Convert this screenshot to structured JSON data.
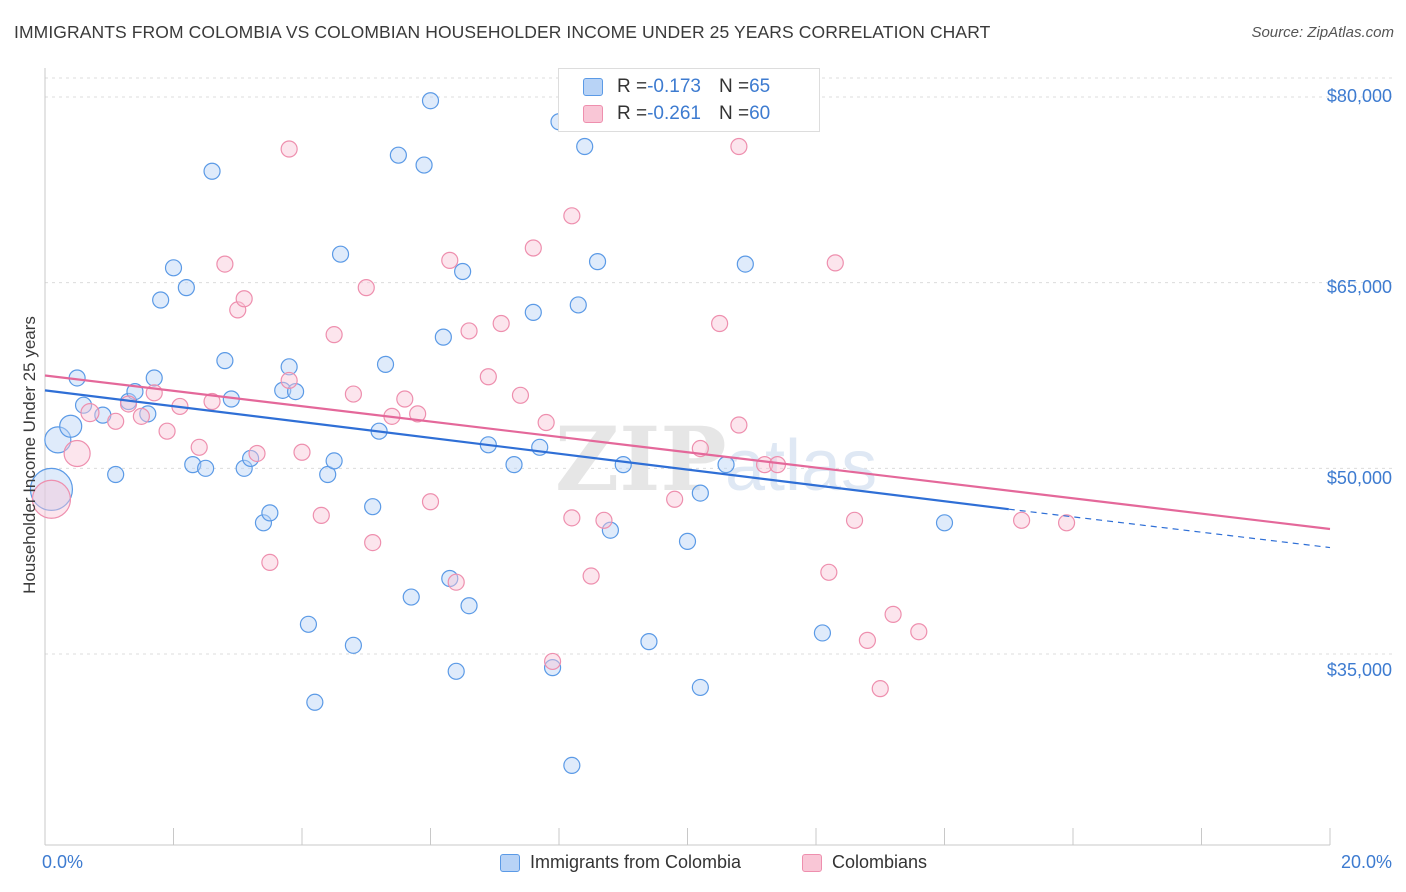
{
  "title": "IMMIGRANTS FROM COLOMBIA VS COLOMBIAN HOUSEHOLDER INCOME UNDER 25 YEARS CORRELATION CHART",
  "source": "Source: ZipAtlas.com",
  "legend_top": {
    "row1": {
      "r_label": "R = ",
      "r_value": "-0.173",
      "n_label": "N = ",
      "n_value": "65"
    },
    "row2": {
      "r_label": "R = ",
      "r_value": "-0.261",
      "n_label": "N = ",
      "n_value": "60"
    }
  },
  "colors": {
    "blue": "#5b9ae6",
    "pink": "#ee8fae",
    "blue_line": "#2f6fd6",
    "pink_line": "#e4689a",
    "accent_text": "#3d7bd0"
  },
  "chart_data": {
    "type": "scatter",
    "title": "IMMIGRANTS FROM COLOMBIA VS COLOMBIAN HOUSEHOLDER INCOME UNDER 25 YEARS CORRELATION CHART",
    "xlabel": "",
    "ylabel": "Householder Income Under 25 years",
    "xlim": [
      0,
      20
    ],
    "ylim": [
      23000,
      83000
    ],
    "x_tick_labels": [
      "0.0%",
      "20.0%"
    ],
    "y_tick_labels": [
      "$80,000",
      "$65,000",
      "$50,000",
      "$35,000"
    ],
    "y_ticks": [
      80000,
      65000,
      50000,
      35000
    ],
    "grid": true,
    "legend_position": "bottom",
    "series": [
      {
        "name": "Immigrants from Colombia",
        "color": "blue",
        "trend": {
          "x": [
            0,
            15
          ],
          "y": [
            56300,
            46700
          ],
          "dashed_to": [
            20,
            43600
          ]
        },
        "points": [
          [
            0.1,
            48300,
            20
          ],
          [
            0.2,
            52300,
            12
          ],
          [
            0.4,
            53400,
            10
          ],
          [
            0.5,
            57300,
            7
          ],
          [
            0.6,
            55100,
            7
          ],
          [
            0.9,
            54300,
            7
          ],
          [
            1.1,
            49500,
            7
          ],
          [
            1.3,
            55400,
            7
          ],
          [
            1.4,
            56200,
            7
          ],
          [
            1.6,
            54400,
            7
          ],
          [
            1.7,
            57300,
            7
          ],
          [
            1.8,
            63600,
            7
          ],
          [
            2.0,
            66200,
            7
          ],
          [
            2.2,
            64600,
            7
          ],
          [
            2.3,
            50300,
            7
          ],
          [
            2.5,
            50000,
            7
          ],
          [
            2.6,
            74000,
            7
          ],
          [
            2.8,
            58700,
            7
          ],
          [
            2.9,
            55600,
            7
          ],
          [
            3.1,
            50000,
            7
          ],
          [
            3.2,
            50800,
            7
          ],
          [
            3.4,
            45600,
            7
          ],
          [
            3.5,
            46400,
            7
          ],
          [
            3.7,
            56300,
            7
          ],
          [
            3.8,
            58200,
            7
          ],
          [
            3.9,
            56200,
            7
          ],
          [
            4.1,
            37400,
            7
          ],
          [
            4.2,
            31100,
            7
          ],
          [
            4.4,
            49500,
            7
          ],
          [
            4.5,
            50600,
            7
          ],
          [
            4.6,
            67300,
            7
          ],
          [
            4.8,
            35700,
            7
          ],
          [
            5.1,
            46900,
            7
          ],
          [
            5.2,
            53000,
            7
          ],
          [
            5.3,
            58400,
            7
          ],
          [
            5.5,
            75300,
            7
          ],
          [
            5.7,
            39600,
            7
          ],
          [
            5.9,
            74500,
            7
          ],
          [
            6.0,
            79700,
            7
          ],
          [
            6.2,
            60600,
            7
          ],
          [
            6.3,
            41100,
            7
          ],
          [
            6.4,
            33600,
            7
          ],
          [
            6.5,
            65900,
            7
          ],
          [
            6.6,
            38900,
            7
          ],
          [
            6.9,
            51900,
            7
          ],
          [
            7.3,
            50300,
            7
          ],
          [
            7.6,
            62600,
            7
          ],
          [
            7.7,
            51700,
            7
          ],
          [
            7.9,
            33900,
            7
          ],
          [
            8.0,
            78000,
            7
          ],
          [
            8.2,
            26000,
            7
          ],
          [
            8.3,
            63200,
            7
          ],
          [
            8.4,
            76000,
            7
          ],
          [
            8.6,
            66700,
            7
          ],
          [
            8.8,
            45000,
            7
          ],
          [
            9.0,
            50300,
            7
          ],
          [
            9.4,
            36000,
            7
          ],
          [
            10.0,
            44100,
            7
          ],
          [
            10.2,
            48000,
            7
          ],
          [
            10.2,
            32300,
            7
          ],
          [
            10.6,
            50300,
            7
          ],
          [
            10.9,
            66500,
            7
          ],
          [
            12.1,
            36700,
            7
          ],
          [
            14.0,
            45600,
            7
          ],
          [
            4.4,
            35700,
            0
          ]
        ]
      },
      {
        "name": "Colombians",
        "color": "pink",
        "trend": {
          "x": [
            0,
            20
          ],
          "y": [
            57500,
            45100
          ]
        },
        "points": [
          [
            0.1,
            47500,
            18
          ],
          [
            0.5,
            51200,
            12
          ],
          [
            0.7,
            54500,
            8
          ],
          [
            1.1,
            53800,
            7
          ],
          [
            1.3,
            55200,
            7
          ],
          [
            1.5,
            54200,
            7
          ],
          [
            1.7,
            56100,
            7
          ],
          [
            1.9,
            53000,
            7
          ],
          [
            2.1,
            55000,
            7
          ],
          [
            2.4,
            51700,
            7
          ],
          [
            2.6,
            55400,
            7
          ],
          [
            2.8,
            66500,
            7
          ],
          [
            3.0,
            62800,
            7
          ],
          [
            3.1,
            63700,
            7
          ],
          [
            3.3,
            51200,
            7
          ],
          [
            3.5,
            42400,
            7
          ],
          [
            3.8,
            57100,
            7
          ],
          [
            3.8,
            75800,
            7
          ],
          [
            4.0,
            51300,
            7
          ],
          [
            4.3,
            46200,
            7
          ],
          [
            4.5,
            60800,
            7
          ],
          [
            4.8,
            56000,
            7
          ],
          [
            5.0,
            64600,
            7
          ],
          [
            5.1,
            44000,
            7
          ],
          [
            5.4,
            54200,
            7
          ],
          [
            5.6,
            55600,
            7
          ],
          [
            5.8,
            54400,
            7
          ],
          [
            6.0,
            47300,
            7
          ],
          [
            6.3,
            66800,
            7
          ],
          [
            6.4,
            40800,
            7
          ],
          [
            6.6,
            61100,
            7
          ],
          [
            6.9,
            57400,
            7
          ],
          [
            7.1,
            61700,
            7
          ],
          [
            7.4,
            55900,
            7
          ],
          [
            7.6,
            67800,
            7
          ],
          [
            7.8,
            53700,
            7
          ],
          [
            7.9,
            34400,
            7
          ],
          [
            8.2,
            46000,
            7
          ],
          [
            8.2,
            70400,
            7
          ],
          [
            8.5,
            41300,
            7
          ],
          [
            8.7,
            45800,
            7
          ],
          [
            9.5,
            78000,
            7
          ],
          [
            9.8,
            47500,
            7
          ],
          [
            10.2,
            51600,
            7
          ],
          [
            10.5,
            61700,
            7
          ],
          [
            10.8,
            53500,
            7
          ],
          [
            10.8,
            76000,
            7
          ],
          [
            11.2,
            50300,
            7
          ],
          [
            11.4,
            50300,
            7
          ],
          [
            12.2,
            41600,
            7
          ],
          [
            12.3,
            66600,
            7
          ],
          [
            12.6,
            45800,
            7
          ],
          [
            12.8,
            36100,
            7
          ],
          [
            13.0,
            32200,
            7
          ],
          [
            13.2,
            38200,
            7
          ],
          [
            13.6,
            36800,
            7
          ],
          [
            15.2,
            45800,
            7
          ],
          [
            15.9,
            45600,
            7
          ],
          [
            7.4,
            55900,
            0
          ],
          [
            4.8,
            56000,
            0
          ]
        ]
      }
    ]
  },
  "bottom_legend": {
    "series1": "Immigrants from Colombia",
    "series2": "Colombians"
  },
  "watermark": "ZIPatlas"
}
